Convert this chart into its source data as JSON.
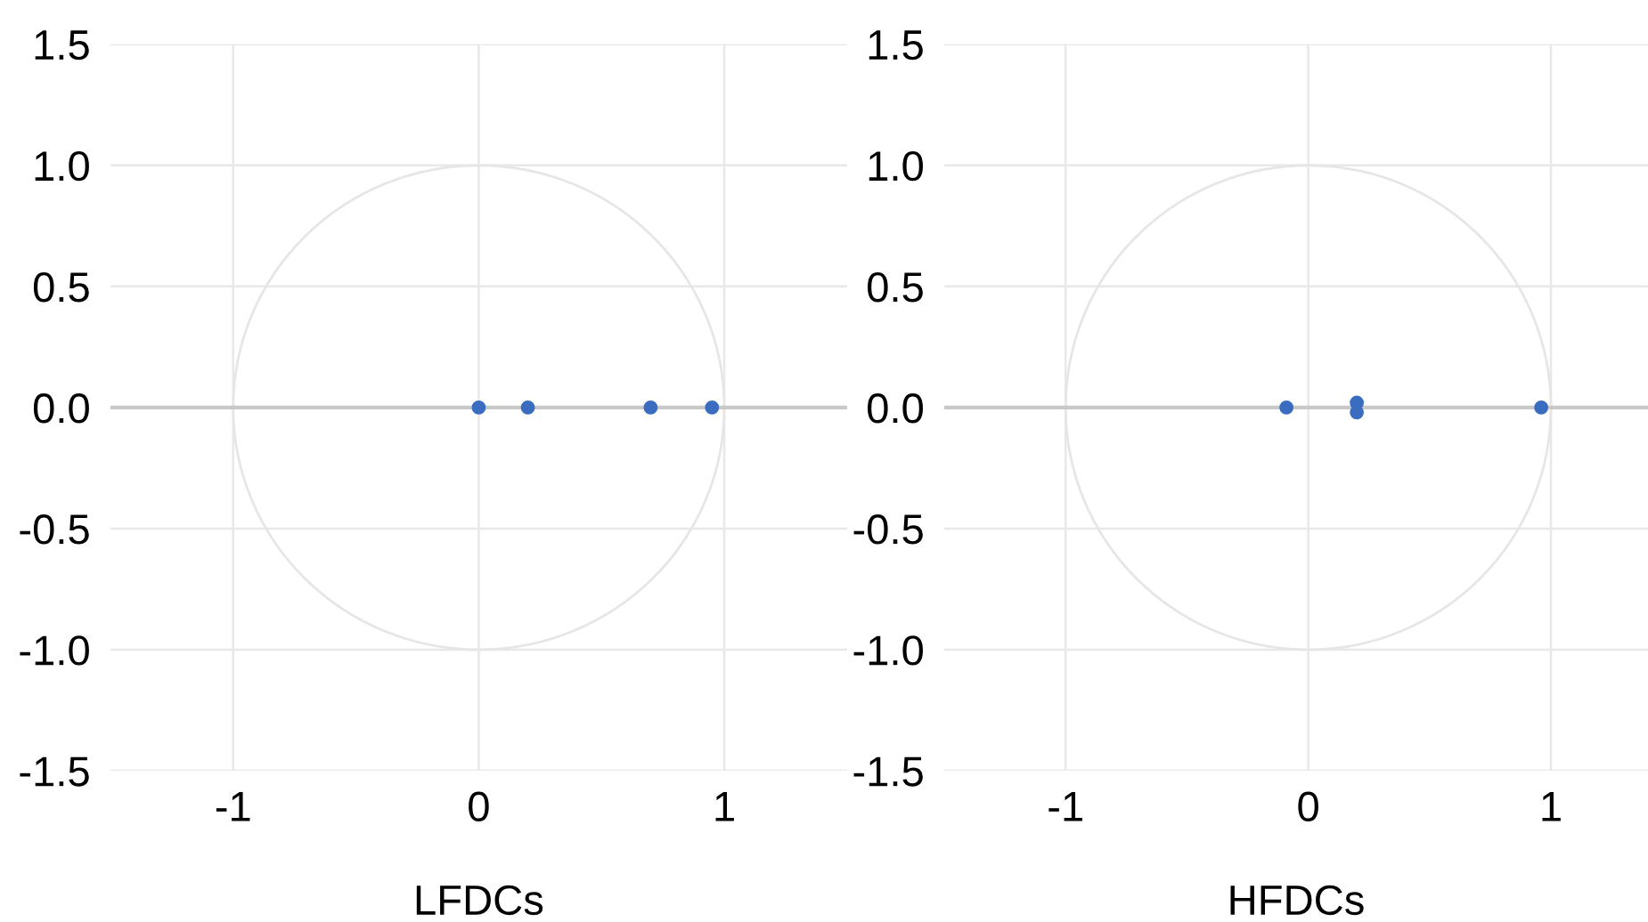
{
  "chart_data": [
    {
      "type": "scatter",
      "xlabel": "LFDCs",
      "xlim": [
        -1.5,
        1.5
      ],
      "ylim": [
        -1.5,
        1.5
      ],
      "xticks": [
        {
          "value": -1,
          "label": "-1"
        },
        {
          "value": 0,
          "label": "0"
        },
        {
          "value": 1,
          "label": "1"
        }
      ],
      "yticks": [
        {
          "value": -1.5,
          "label": "-1.5"
        },
        {
          "value": -1,
          "label": "-1.0"
        },
        {
          "value": -0.5,
          "label": "-0.5"
        },
        {
          "value": 0,
          "label": "0.0"
        },
        {
          "value": 0.5,
          "label": "0.5"
        },
        {
          "value": 1,
          "label": "1.0"
        },
        {
          "value": 1.5,
          "label": "1.5"
        }
      ],
      "grid": true,
      "marker": "circle",
      "ref_lines": [
        {
          "axis": "y",
          "value": 0,
          "color": "#c8c8c8"
        }
      ],
      "series": [
        {
          "color": "#3a6dbf",
          "x": [
            0,
            0.2,
            0.7,
            0.95
          ],
          "values": [
            0,
            0,
            0,
            0
          ]
        }
      ]
    },
    {
      "type": "scatter",
      "xlabel": "HFDCs",
      "xlim": [
        -1.5,
        1.4
      ],
      "ylim": [
        -1.5,
        1.5
      ],
      "xticks": [
        {
          "value": -1,
          "label": "-1"
        },
        {
          "value": 0,
          "label": "0"
        },
        {
          "value": 1,
          "label": "1"
        }
      ],
      "yticks": [
        {
          "value": -1.5,
          "label": "-1.5"
        },
        {
          "value": -1,
          "label": "-1.0"
        },
        {
          "value": -0.5,
          "label": "-0.5"
        },
        {
          "value": 0,
          "label": "0.0"
        },
        {
          "value": 0.5,
          "label": "0.5"
        },
        {
          "value": 1,
          "label": "1.0"
        },
        {
          "value": 1.5,
          "label": "1.5"
        }
      ],
      "grid": true,
      "marker": "circle",
      "ref_lines": [
        {
          "axis": "y",
          "value": 0,
          "color": "#c8c8c8"
        }
      ],
      "series": [
        {
          "color": "#3a6dbf",
          "x": [
            -0.09,
            0.2,
            0.2,
            0.96
          ],
          "values": [
            0,
            0.02,
            -0.02,
            0
          ]
        }
      ]
    }
  ]
}
